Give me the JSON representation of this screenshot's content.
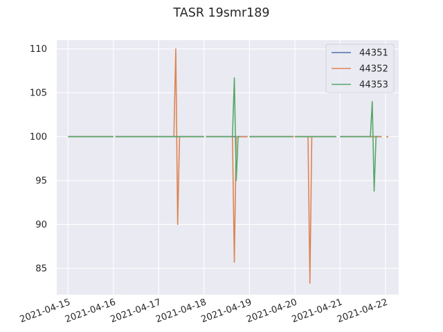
{
  "chart_data": {
    "type": "line",
    "title": "TASR 19smr189",
    "xlabel": "",
    "ylabel": "",
    "x_ticks": [
      "2021-04-15",
      "2021-04-16",
      "2021-04-17",
      "2021-04-18",
      "2021-04-19",
      "2021-04-20",
      "2021-04-21",
      "2021-04-22"
    ],
    "y_ticks": [
      85,
      90,
      95,
      100,
      105,
      110
    ],
    "xlim": [
      "2021-04-14 18:00",
      "2021-04-22 07:00"
    ],
    "ylim": [
      82,
      111
    ],
    "grid": true,
    "legend_placement": "top-right",
    "series": [
      {
        "name": "44351",
        "color": "#4c72b0",
        "segments": [
          [
            [
              "2021-04-15 00:00",
              100
            ],
            [
              "2021-04-15 23:59",
              100
            ]
          ],
          [
            [
              "2021-04-16 01:00",
              100
            ],
            [
              "2021-04-16 23:59",
              100
            ]
          ],
          [
            [
              "2021-04-17 00:00",
              100
            ],
            [
              "2021-04-17 23:59",
              100
            ]
          ],
          [
            [
              "2021-04-18 01:00",
              100
            ],
            [
              "2021-04-18 23:00",
              100
            ]
          ],
          [
            [
              "2021-04-19 00:00",
              100
            ],
            [
              "2021-04-19 23:00",
              100
            ]
          ],
          [
            [
              "2021-04-20 00:00",
              100
            ],
            [
              "2021-04-20 22:00",
              100
            ]
          ],
          [
            [
              "2021-04-21 00:00",
              100
            ],
            [
              "2021-04-21 22:00",
              100
            ]
          ]
        ]
      },
      {
        "name": "44352",
        "color": "#dd8452",
        "segments": [
          [
            [
              "2021-04-15 00:00",
              100
            ],
            [
              "2021-04-15 23:59",
              100
            ]
          ],
          [
            [
              "2021-04-16 01:00",
              100
            ],
            [
              "2021-04-16 23:59",
              100
            ]
          ],
          [
            [
              "2021-04-17 00:00",
              100
            ],
            [
              "2021-04-17 07:00",
              100
            ],
            [
              "2021-04-17 08:00",
              100
            ],
            [
              "2021-04-17 09:00",
              110
            ],
            [
              "2021-04-17 10:00",
              90
            ],
            [
              "2021-04-17 11:00",
              100
            ],
            [
              "2021-04-17 23:59",
              100
            ]
          ],
          [
            [
              "2021-04-18 01:00",
              100
            ],
            [
              "2021-04-18 15:00",
              100
            ],
            [
              "2021-04-18 16:00",
              85.7
            ],
            [
              "2021-04-18 17:00",
              100
            ],
            [
              "2021-04-18 23:00",
              100
            ]
          ],
          [
            [
              "2021-04-19 00:00",
              100
            ],
            [
              "2021-04-19 23:00",
              100
            ]
          ],
          [
            [
              "2021-04-20 00:00",
              100
            ],
            [
              "2021-04-20 07:00",
              100
            ],
            [
              "2021-04-20 08:00",
              83.3
            ],
            [
              "2021-04-20 09:00",
              100
            ],
            [
              "2021-04-20 22:00",
              100
            ]
          ],
          [
            [
              "2021-04-21 00:00",
              100
            ],
            [
              "2021-04-21 22:00",
              100
            ]
          ]
        ]
      },
      {
        "name": "44353",
        "color": "#55a868",
        "segments": [
          [
            [
              "2021-04-15 00:00",
              100
            ],
            [
              "2021-04-15 23:59",
              100
            ]
          ],
          [
            [
              "2021-04-16 01:00",
              100
            ],
            [
              "2021-04-16 23:59",
              100
            ]
          ],
          [
            [
              "2021-04-17 00:00",
              100
            ],
            [
              "2021-04-17 23:59",
              100
            ]
          ],
          [
            [
              "2021-04-18 01:00",
              100
            ],
            [
              "2021-04-18 15:00",
              100
            ],
            [
              "2021-04-18 16:00",
              106.7
            ],
            [
              "2021-04-18 17:00",
              95
            ],
            [
              "2021-04-18 18:00",
              100
            ],
            [
              "2021-04-18 19:00",
              100
            ]
          ],
          [
            [
              "2021-04-19 00:00",
              100
            ],
            [
              "2021-04-19 23:00",
              100
            ]
          ],
          [
            [
              "2021-04-20 00:00",
              100
            ],
            [
              "2021-04-20 22:00",
              100
            ]
          ],
          [
            [
              "2021-04-21 00:00",
              100
            ],
            [
              "2021-04-21 16:00",
              100
            ],
            [
              "2021-04-21 17:00",
              104
            ],
            [
              "2021-04-21 18:00",
              93.8
            ],
            [
              "2021-04-21 19:00",
              100
            ],
            [
              "2021-04-21 20:00",
              100
            ]
          ]
        ]
      }
    ],
    "markers": [
      {
        "series": "44352",
        "color": "#dd8452",
        "points": [
          [
            "2021-04-18 22:00",
            100
          ],
          [
            "2021-04-19 23:00",
            100
          ],
          [
            "2021-04-22 01:00",
            100
          ]
        ]
      }
    ]
  }
}
